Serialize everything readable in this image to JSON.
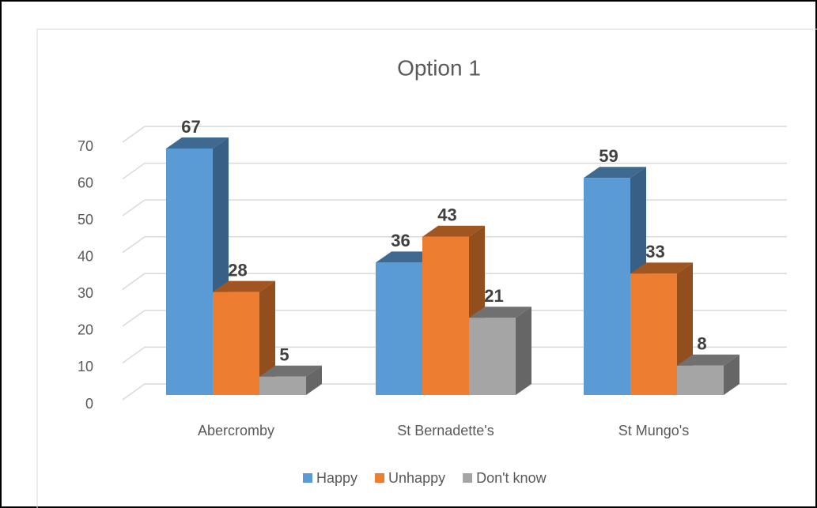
{
  "chart_data": {
    "type": "bar3d",
    "title": "Option 1",
    "categories": [
      "Abercromby",
      "St Bernadette's",
      "St Mungo's"
    ],
    "series": [
      {
        "name": "Happy",
        "color": "#5b9bd5",
        "values": [
          67,
          36,
          59
        ]
      },
      {
        "name": "Unhappy",
        "color": "#ed7d31",
        "values": [
          28,
          43,
          33
        ]
      },
      {
        "name": "Don't know",
        "color": "#a5a5a5",
        "values": [
          5,
          21,
          8
        ]
      }
    ],
    "ylim": [
      0,
      70
    ],
    "yticks": [
      0,
      10,
      20,
      30,
      40,
      50,
      60,
      70
    ],
    "grid": true,
    "legend": "bottom"
  }
}
